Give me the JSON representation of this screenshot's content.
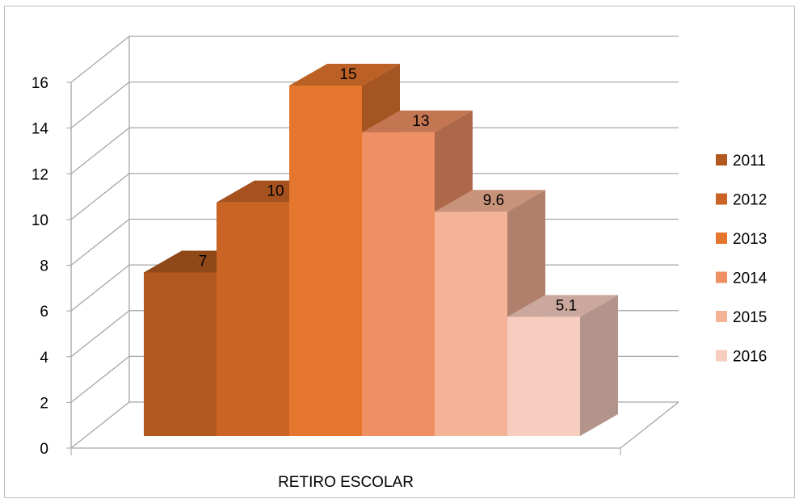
{
  "chart_data": {
    "type": "bar",
    "categories": [
      "RETIRO ESCOLAR"
    ],
    "series": [
      {
        "name": "2011",
        "values": [
          7
        ],
        "color": "#b0581e"
      },
      {
        "name": "2012",
        "values": [
          10
        ],
        "color": "#ca6424"
      },
      {
        "name": "2013",
        "values": [
          15
        ],
        "color": "#e5762e"
      },
      {
        "name": "2014",
        "values": [
          13
        ],
        "color": "#ef9064"
      },
      {
        "name": "2015",
        "values": [
          9.6
        ],
        "color": "#f4b296"
      },
      {
        "name": "2016",
        "values": [
          5.1
        ],
        "color": "#f7cdbf"
      }
    ],
    "data_labels": [
      "7",
      "10",
      "15",
      "13",
      "9.6",
      "5.1"
    ],
    "y_ticks": [
      "0",
      "2",
      "4",
      "6",
      "8",
      "10",
      "12",
      "14",
      "16"
    ],
    "ylim": [
      0,
      16
    ],
    "grid": true,
    "three_d": true,
    "legend_position": "right",
    "title": "",
    "xlabel": "",
    "ylabel": ""
  }
}
